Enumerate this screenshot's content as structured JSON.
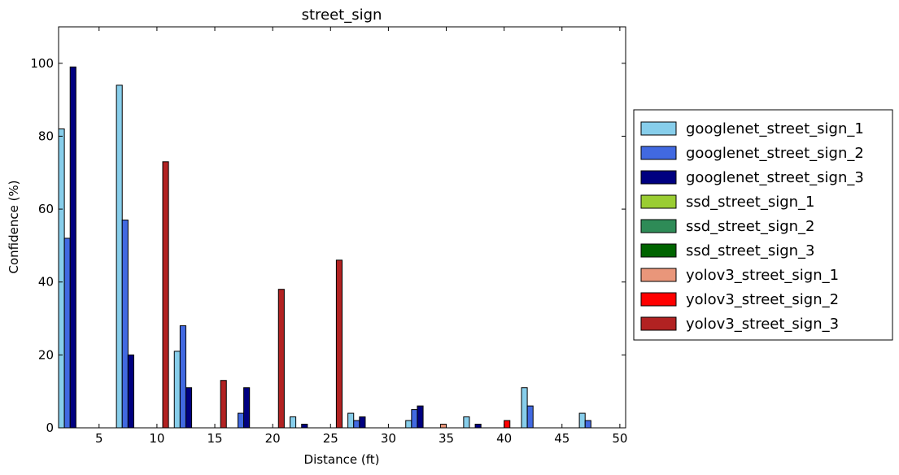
{
  "chart_data": {
    "type": "bar",
    "title": "street_sign",
    "xlabel": "Distance (ft)",
    "ylabel": "Confidence (%)",
    "xlim": [
      1.5,
      50.5
    ],
    "ylim": [
      0,
      110
    ],
    "xticks": [
      5,
      10,
      15,
      20,
      25,
      30,
      35,
      40,
      45,
      50
    ],
    "yticks": [
      0,
      20,
      40,
      60,
      80,
      100
    ],
    "grid": false,
    "legend_position": "outside-right",
    "x": [
      2,
      7,
      12,
      17,
      22,
      27,
      32,
      37,
      42,
      47
    ],
    "series": [
      {
        "name": "googlenet_street_sign_1",
        "color": "#87ceeb",
        "values": [
          82,
          94,
          21,
          0,
          3,
          4,
          2,
          3,
          11,
          4
        ]
      },
      {
        "name": "googlenet_street_sign_2",
        "color": "#4169e1",
        "values": [
          52,
          57,
          28,
          4,
          0,
          2,
          5,
          0,
          6,
          2
        ]
      },
      {
        "name": "googlenet_street_sign_3",
        "color": "#000080",
        "values": [
          99,
          20,
          11,
          11,
          1,
          3,
          6,
          1,
          0,
          0
        ]
      },
      {
        "name": "ssd_street_sign_1",
        "color": "#9acd32",
        "values": [
          0,
          0,
          0,
          0,
          0,
          0,
          0,
          0,
          0,
          0
        ]
      },
      {
        "name": "ssd_street_sign_2",
        "color": "#2e8b57",
        "values": [
          0,
          0,
          0,
          0,
          0,
          0,
          0,
          0,
          0,
          0
        ]
      },
      {
        "name": "ssd_street_sign_3",
        "color": "#006400",
        "values": [
          0,
          0,
          0,
          0,
          0,
          0,
          0,
          0,
          0,
          0
        ]
      },
      {
        "name": "yolov3_street_sign_1",
        "color": "#e9967a",
        "values": [
          0,
          0,
          0,
          0,
          0,
          0,
          1,
          0,
          0,
          0
        ]
      },
      {
        "name": "yolov3_street_sign_2",
        "color": "#ff0000",
        "values": [
          0,
          0,
          0,
          0,
          0,
          0,
          0,
          2,
          0,
          0
        ]
      },
      {
        "name": "yolov3_street_sign_3",
        "color": "#b22222",
        "values": [
          0,
          73,
          13,
          38,
          46,
          0,
          0,
          0,
          0,
          0
        ]
      }
    ]
  }
}
